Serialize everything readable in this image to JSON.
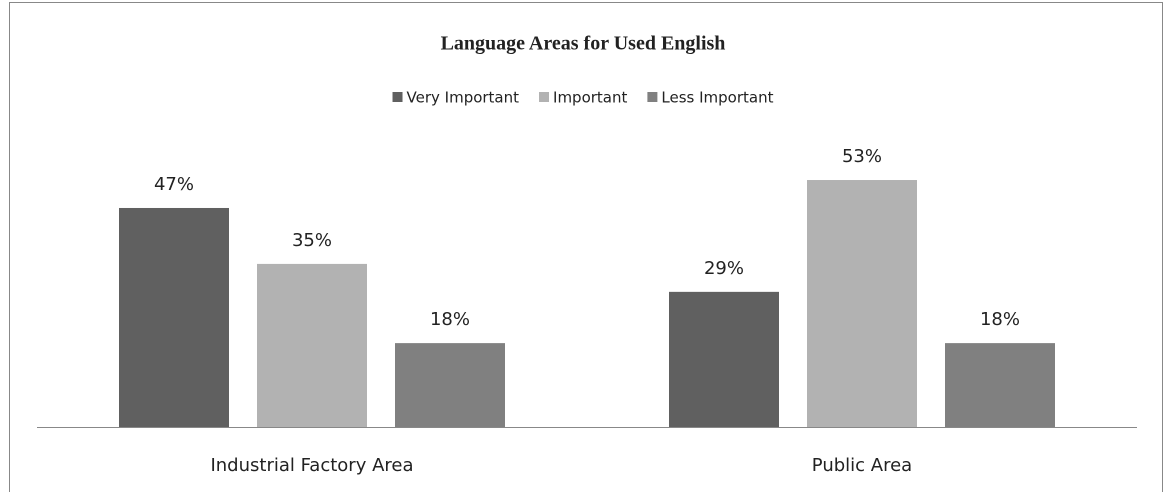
{
  "chart_data": {
    "type": "bar",
    "title": "Language Areas for Used English",
    "categories": [
      "Industrial Factory Area",
      "Public Area"
    ],
    "series": [
      {
        "name": "Very Important",
        "color": "#606060",
        "values": [
          47,
          29
        ],
        "value_labels": [
          "47%",
          "29%"
        ]
      },
      {
        "name": "Important",
        "color": "#b2b2b2",
        "values": [
          35,
          53
        ],
        "value_labels": [
          "35%",
          "53%"
        ]
      },
      {
        "name": "Less Important",
        "color": "#808080",
        "values": [
          18,
          18
        ],
        "value_labels": [
          "18%",
          "18%"
        ]
      }
    ],
    "legend": "top",
    "grid": false
  }
}
